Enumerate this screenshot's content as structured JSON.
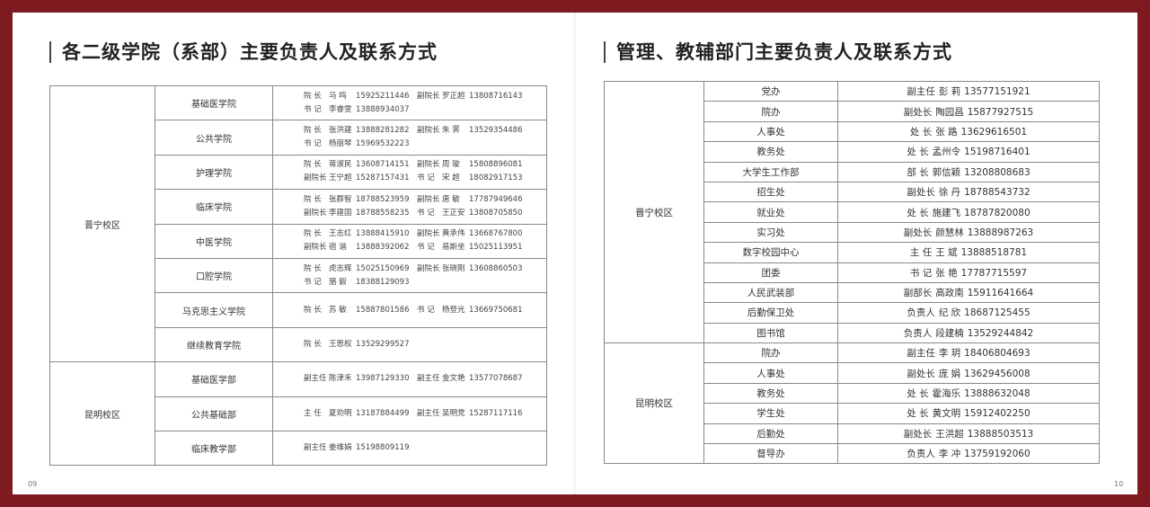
{
  "left": {
    "title": "各二级学院（系部）主要负责人及联系方式",
    "page_number": "09",
    "groups": [
      {
        "campus": "晋宁校区",
        "rows": [
          {
            "unit": "基础医学院",
            "lines": [
              [
                [
                  "院 长",
                  "马 鸣",
                  "15925211446"
                ],
                [
                  "副院长",
                  "罗正超",
                  "13808716143"
                ]
              ],
              [
                [
                  "书 记",
                  "李睿雯",
                  "13888934037"
                ]
              ]
            ]
          },
          {
            "unit": "公共学院",
            "lines": [
              [
                [
                  "院 长",
                  "张洪建",
                  "13888281282"
                ],
                [
                  "副院长",
                  "朱 霁",
                  "13529354486"
                ]
              ],
              [
                [
                  "书 记",
                  "杨丽琴",
                  "15969532223"
                ]
              ]
            ]
          },
          {
            "unit": "护理学院",
            "lines": [
              [
                [
                  "院 长",
                  "蒋淑民",
                  "13608714151"
                ],
                [
                  "副院长",
                  "周 璇",
                  "15808896081"
                ]
              ],
              [
                [
                  "副院长",
                  "王宁超",
                  "15287157431"
                ],
                [
                  "书 记",
                  "宋 超",
                  "18082917153"
                ]
              ]
            ]
          },
          {
            "unit": "临床学院",
            "lines": [
              [
                [
                  "院 长",
                  "张群智",
                  "18788523959"
                ],
                [
                  "副院长",
                  "唐 敏",
                  "17787949646"
                ]
              ],
              [
                [
                  "副院长",
                  "李建国",
                  "18788558235"
                ],
                [
                  "书 记",
                  "王正安",
                  "13808705850"
                ]
              ]
            ]
          },
          {
            "unit": "中医学院",
            "lines": [
              [
                [
                  "院 长",
                  "王志红",
                  "13888415910"
                ],
                [
                  "副院长",
                  "黄承伟",
                  "13668767800"
                ]
              ],
              [
                [
                  "副院长",
                  "宿 谐",
                  "13888392062"
                ],
                [
                  "书 记",
                  "易斯坐",
                  "15025113951"
                ]
              ]
            ]
          },
          {
            "unit": "口腔学院",
            "lines": [
              [
                [
                  "院 长",
                  "虎志辉",
                  "15025150969"
                ],
                [
                  "副院长",
                  "张晓刚",
                  "13608860503"
                ]
              ],
              [
                [
                  "书 记",
                  "骆 毅",
                  "18388129093"
                ]
              ]
            ]
          },
          {
            "unit": "马克思主义学院",
            "lines": [
              [
                [
                  "院 长",
                  "苏 敏",
                  "15887801586"
                ],
                [
                  "书 记",
                  "杨登光",
                  "13669750681"
                ]
              ]
            ]
          },
          {
            "unit": "继续教育学院",
            "lines": [
              [
                [
                  "院 长",
                  "王思权",
                  "13529299527"
                ]
              ]
            ]
          }
        ]
      },
      {
        "campus": "昆明校区",
        "rows": [
          {
            "unit": "基础医学部",
            "lines": [
              [
                [
                  "副主任",
                  "陈津禾",
                  "13987129330"
                ],
                [
                  "副主任",
                  "金文艳",
                  "13577078687"
                ]
              ]
            ]
          },
          {
            "unit": "公共基础部",
            "lines": [
              [
                [
                  "主 任",
                  "夏劝明",
                  "13187884499"
                ],
                [
                  "副主任",
                  "吴明党",
                  "15287117116"
                ]
              ]
            ]
          },
          {
            "unit": "临床教学部",
            "lines": [
              [
                [
                  "副主任",
                  "姜维娟",
                  "15198809119"
                ]
              ]
            ]
          }
        ]
      }
    ]
  },
  "right": {
    "title": "管理、教辅部门主要负责人及联系方式",
    "page_number": "10",
    "groups": [
      {
        "campus": "晋宁校区",
        "rows": [
          [
            "党办",
            "副主任",
            "彭 莉",
            "13577151921"
          ],
          [
            "院办",
            "副处长",
            "陶园昌",
            "15877927515"
          ],
          [
            "人事处",
            "处 长",
            "张 路",
            "13629616501"
          ],
          [
            "教务处",
            "处 长",
            "孟州令",
            "15198716401"
          ],
          [
            "大学生工作部",
            "部 长",
            "郭信颖",
            "13208808683"
          ],
          [
            "招生处",
            "副处长",
            "徐 丹",
            "18788543732"
          ],
          [
            "就业处",
            "处 长",
            "施建飞",
            "18787820080"
          ],
          [
            "实习处",
            "副处长",
            "颜慧林",
            "13888987263"
          ],
          [
            "数字校园中心",
            "主 任",
            "王 斌",
            "13888518781"
          ],
          [
            "团委",
            "书 记",
            "张 艳",
            "17787715597"
          ],
          [
            "人民武装部",
            "副部长",
            "高政南",
            "15911641664"
          ],
          [
            "后勤保卫处",
            "负责人",
            "纪 欣",
            "18687125455"
          ],
          [
            "图书馆",
            "负责人",
            "段建楠",
            "13529244842"
          ]
        ]
      },
      {
        "campus": "昆明校区",
        "rows": [
          [
            "院办",
            "副主任",
            "李 玥",
            "18406804693"
          ],
          [
            "人事处",
            "副处长",
            "庞 娟",
            "13629456008"
          ],
          [
            "教务处",
            "处 长",
            "霍海乐",
            "13888632048"
          ],
          [
            "学生处",
            "处 长",
            "黄文明",
            "15912402250"
          ],
          [
            "后勤处",
            "副处长",
            "王洪超",
            "13888503513"
          ],
          [
            "督导办",
            "负责人",
            "李 冲",
            "13759192060"
          ]
        ]
      }
    ]
  }
}
